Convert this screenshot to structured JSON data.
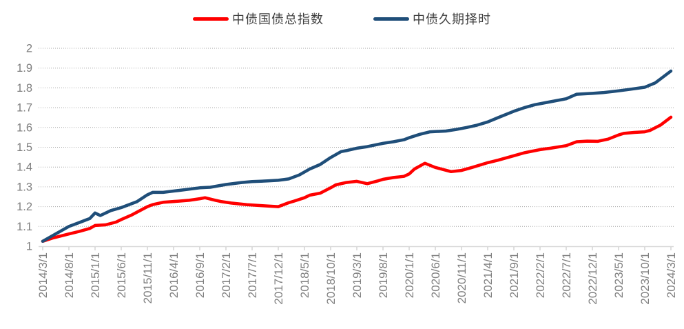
{
  "legend": {
    "items": [
      {
        "label": "中债国债总指数",
        "color": "#ff0000",
        "swatch": "red-line"
      },
      {
        "label": "中债久期择时",
        "color": "#1f4e79",
        "swatch": "blue-line"
      }
    ]
  },
  "axis_style": {
    "tick_label_color": "#7f7f7f",
    "gridline_color": "#a6a6a6",
    "axis_line_color": "#d9d9d9",
    "tick_mark_color": "#bfbfbf"
  },
  "chart_data": {
    "type": "line",
    "title": "",
    "xlabel": "",
    "ylabel": "",
    "ylim": [
      1,
      2
    ],
    "y_ticks": [
      1,
      1.1,
      1.2,
      1.3,
      1.4,
      1.5,
      1.6,
      1.7,
      1.8,
      1.9,
      2
    ],
    "grid": "horizontal-dotted",
    "legend_position": "top-center",
    "x_unit": "months since 2014/3/1, monthly data, ticks every 5 months",
    "x_tick_step_months": 5,
    "x_tick_labels": [
      "2014/3/1",
      "2014/8/1",
      "2015/1/1",
      "2015/6/1",
      "2015/11/1",
      "2016/4/1",
      "2016/9/1",
      "2017/2/1",
      "2017/7/1",
      "2017/12/1",
      "2018/5/1",
      "2018/10/1",
      "2019/3/1",
      "2019/8/1",
      "2020/1/1",
      "2020/6/1",
      "2020/11/1",
      "2021/4/1",
      "2021/9/1",
      "2022/2/1",
      "2022/7/1",
      "2022/12/1",
      "2023/5/1",
      "2023/10/1",
      "2024/3/1"
    ],
    "series": [
      {
        "name": "中债国债总指数",
        "color": "#ff0000",
        "points": [
          [
            0,
            1.025
          ],
          [
            2,
            1.042
          ],
          [
            5,
            1.062
          ],
          [
            7,
            1.075
          ],
          [
            9,
            1.09
          ],
          [
            10,
            1.105
          ],
          [
            12,
            1.108
          ],
          [
            14,
            1.122
          ],
          [
            15,
            1.135
          ],
          [
            17,
            1.158
          ],
          [
            18,
            1.172
          ],
          [
            20,
            1.2
          ],
          [
            21,
            1.21
          ],
          [
            23,
            1.222
          ],
          [
            26,
            1.228
          ],
          [
            28,
            1.232
          ],
          [
            30,
            1.24
          ],
          [
            31,
            1.245
          ],
          [
            33,
            1.232
          ],
          [
            34,
            1.226
          ],
          [
            36,
            1.218
          ],
          [
            39,
            1.21
          ],
          [
            42,
            1.205
          ],
          [
            45,
            1.2
          ],
          [
            47,
            1.22
          ],
          [
            48,
            1.228
          ],
          [
            50,
            1.245
          ],
          [
            51,
            1.258
          ],
          [
            53,
            1.268
          ],
          [
            55,
            1.295
          ],
          [
            56,
            1.31
          ],
          [
            58,
            1.322
          ],
          [
            60,
            1.328
          ],
          [
            62,
            1.316
          ],
          [
            64,
            1.33
          ],
          [
            65,
            1.338
          ],
          [
            67,
            1.347
          ],
          [
            69,
            1.353
          ],
          [
            70,
            1.365
          ],
          [
            71,
            1.39
          ],
          [
            73,
            1.419
          ],
          [
            75,
            1.398
          ],
          [
            78,
            1.377
          ],
          [
            80,
            1.383
          ],
          [
            82,
            1.398
          ],
          [
            85,
            1.422
          ],
          [
            87,
            1.435
          ],
          [
            90,
            1.457
          ],
          [
            92,
            1.472
          ],
          [
            95,
            1.488
          ],
          [
            97,
            1.495
          ],
          [
            100,
            1.508
          ],
          [
            102,
            1.528
          ],
          [
            104,
            1.531
          ],
          [
            106,
            1.53
          ],
          [
            108,
            1.541
          ],
          [
            110,
            1.562
          ],
          [
            111,
            1.57
          ],
          [
            113,
            1.575
          ],
          [
            115,
            1.578
          ],
          [
            116,
            1.585
          ],
          [
            118,
            1.612
          ],
          [
            120,
            1.652
          ]
        ]
      },
      {
        "name": "中债久期择时",
        "color": "#1f4e79",
        "points": [
          [
            0,
            1.025
          ],
          [
            2,
            1.055
          ],
          [
            5,
            1.1
          ],
          [
            7,
            1.12
          ],
          [
            9,
            1.14
          ],
          [
            10,
            1.168
          ],
          [
            11,
            1.155
          ],
          [
            13,
            1.18
          ],
          [
            15,
            1.195
          ],
          [
            18,
            1.225
          ],
          [
            20,
            1.26
          ],
          [
            21,
            1.272
          ],
          [
            23,
            1.272
          ],
          [
            26,
            1.282
          ],
          [
            30,
            1.295
          ],
          [
            32,
            1.298
          ],
          [
            35,
            1.312
          ],
          [
            38,
            1.322
          ],
          [
            40,
            1.327
          ],
          [
            43,
            1.33
          ],
          [
            45,
            1.333
          ],
          [
            47,
            1.34
          ],
          [
            49,
            1.36
          ],
          [
            51,
            1.39
          ],
          [
            53,
            1.413
          ],
          [
            55,
            1.448
          ],
          [
            57,
            1.478
          ],
          [
            58,
            1.483
          ],
          [
            60,
            1.495
          ],
          [
            62,
            1.503
          ],
          [
            65,
            1.52
          ],
          [
            67,
            1.528
          ],
          [
            69,
            1.538
          ],
          [
            70,
            1.548
          ],
          [
            72,
            1.565
          ],
          [
            74,
            1.578
          ],
          [
            77,
            1.582
          ],
          [
            79,
            1.59
          ],
          [
            81,
            1.6
          ],
          [
            83,
            1.612
          ],
          [
            85,
            1.628
          ],
          [
            87,
            1.65
          ],
          [
            90,
            1.682
          ],
          [
            92,
            1.7
          ],
          [
            94,
            1.715
          ],
          [
            97,
            1.73
          ],
          [
            100,
            1.745
          ],
          [
            102,
            1.768
          ],
          [
            105,
            1.772
          ],
          [
            107,
            1.776
          ],
          [
            110,
            1.785
          ],
          [
            112,
            1.792
          ],
          [
            115,
            1.803
          ],
          [
            117,
            1.825
          ],
          [
            118,
            1.845
          ],
          [
            120,
            1.885
          ]
        ]
      }
    ]
  }
}
